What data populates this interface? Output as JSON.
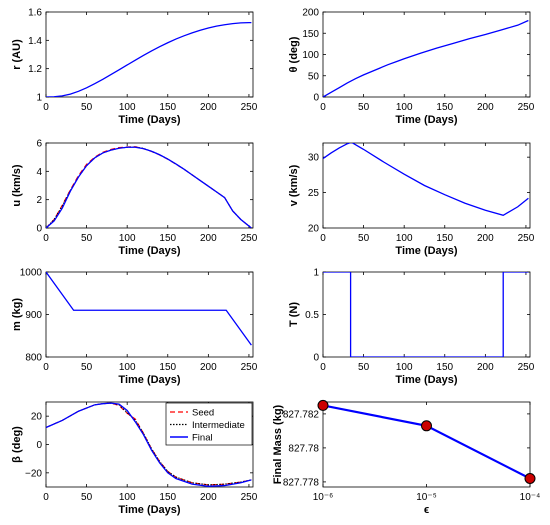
{
  "colors": {
    "final": "#0000ff",
    "seed": "#ff0000",
    "intermediate": "#000000",
    "marker_fill": "#cc0000"
  },
  "legend": {
    "seed": "Seed",
    "intermediate": "Intermediate",
    "final": "Final"
  },
  "chart_data": [
    {
      "type": "line",
      "id": "r",
      "xlabel": "Time (Days)",
      "ylabel": "r (AU)",
      "xlim": [
        0,
        255
      ],
      "ylim": [
        1,
        1.6
      ],
      "xticks": [
        0,
        50,
        100,
        150,
        200,
        250
      ],
      "xtick_labels": [
        "0",
        "50",
        "100",
        "150",
        "200",
        "250"
      ],
      "yticks": [
        1,
        1.2,
        1.4,
        1.6
      ],
      "ytick_labels": [
        "1",
        "1.2",
        "1.4",
        "1.6"
      ],
      "series": [
        {
          "style": "final",
          "x": [
            0,
            10,
            20,
            30,
            40,
            50,
            60,
            70,
            80,
            90,
            100,
            110,
            120,
            130,
            140,
            150,
            160,
            170,
            180,
            190,
            200,
            210,
            220,
            230,
            240,
            250,
            253
          ],
          "y": [
            1,
            1.002,
            1.008,
            1.02,
            1.04,
            1.065,
            1.094,
            1.125,
            1.158,
            1.192,
            1.226,
            1.26,
            1.293,
            1.325,
            1.355,
            1.383,
            1.409,
            1.432,
            1.453,
            1.471,
            1.487,
            1.5,
            1.51,
            1.518,
            1.523,
            1.525,
            1.525
          ]
        }
      ]
    },
    {
      "type": "line",
      "id": "theta",
      "xlabel": "Time (Days)",
      "ylabel": "θ (deg)",
      "xlim": [
        0,
        255
      ],
      "ylim": [
        0,
        200
      ],
      "xticks": [
        0,
        50,
        100,
        150,
        200,
        250
      ],
      "xtick_labels": [
        "0",
        "50",
        "100",
        "150",
        "200",
        "250"
      ],
      "yticks": [
        0,
        50,
        100,
        150,
        200
      ],
      "ytick_labels": [
        "0",
        "50",
        "100",
        "150",
        "200"
      ],
      "series": [
        {
          "style": "final",
          "x": [
            0,
            10,
            20,
            30,
            40,
            50,
            60,
            70,
            80,
            90,
            100,
            120,
            140,
            160,
            180,
            200,
            220,
            240,
            253
          ],
          "y": [
            0,
            11,
            22,
            33,
            43,
            52,
            60,
            68,
            76,
            83,
            90,
            103,
            115,
            126,
            137,
            147,
            158,
            169,
            180
          ]
        }
      ]
    },
    {
      "type": "line",
      "id": "u",
      "xlabel": "Time (Days)",
      "ylabel": "u (km/s)",
      "xlim": [
        0,
        255
      ],
      "ylim": [
        0,
        6
      ],
      "xticks": [
        0,
        50,
        100,
        150,
        200,
        250
      ],
      "xtick_labels": [
        "0",
        "50",
        "100",
        "150",
        "200",
        "250"
      ],
      "yticks": [
        0,
        2,
        4,
        6
      ],
      "ytick_labels": [
        "0",
        "2",
        "4",
        "6"
      ],
      "series": [
        {
          "style": "seed",
          "x": [
            0,
            10,
            20,
            30,
            40,
            50,
            60,
            70,
            80,
            90,
            100,
            110,
            120,
            130,
            140,
            150,
            160,
            170,
            180,
            190,
            200,
            210,
            220,
            230,
            240,
            253
          ],
          "y": [
            0,
            0.6,
            1.6,
            2.7,
            3.7,
            4.5,
            5.0,
            5.35,
            5.55,
            5.68,
            5.72,
            5.74,
            5.6,
            5.4,
            5.15,
            4.85,
            4.5,
            4.15,
            3.75,
            3.35,
            2.95,
            2.55,
            2.15,
            1.2,
            0.6,
            0
          ]
        },
        {
          "style": "intermediate",
          "x": [
            0,
            10,
            20,
            30,
            40,
            50,
            60,
            70,
            80,
            90,
            100,
            110,
            120,
            130,
            140,
            150,
            160,
            170,
            180,
            190,
            200,
            210,
            220,
            230,
            240,
            253
          ],
          "y": [
            0,
            0.6,
            1.55,
            2.65,
            3.6,
            4.4,
            4.95,
            5.3,
            5.5,
            5.63,
            5.7,
            5.72,
            5.62,
            5.42,
            5.17,
            4.87,
            4.52,
            4.15,
            3.75,
            3.35,
            2.95,
            2.55,
            2.15,
            1.2,
            0.6,
            0
          ]
        },
        {
          "style": "final",
          "x": [
            0,
            10,
            20,
            30,
            40,
            50,
            60,
            70,
            80,
            90,
            100,
            110,
            120,
            130,
            140,
            150,
            160,
            170,
            180,
            190,
            200,
            210,
            220,
            230,
            240,
            253
          ],
          "y": [
            0,
            0.5,
            1.4,
            2.6,
            3.6,
            4.4,
            4.95,
            5.3,
            5.5,
            5.63,
            5.7,
            5.7,
            5.6,
            5.42,
            5.17,
            4.87,
            4.52,
            4.15,
            3.75,
            3.35,
            2.95,
            2.55,
            2.15,
            1.2,
            0.6,
            0
          ]
        }
      ]
    },
    {
      "type": "line",
      "id": "v",
      "xlabel": "Time (Days)",
      "ylabel": "v (km/s)",
      "xlim": [
        0,
        255
      ],
      "ylim": [
        20,
        32
      ],
      "xticks": [
        0,
        50,
        100,
        150,
        200,
        250
      ],
      "xtick_labels": [
        "0",
        "50",
        "100",
        "150",
        "200",
        "250"
      ],
      "yticks": [
        20,
        25,
        30
      ],
      "ytick_labels": [
        "20",
        "25",
        "30"
      ],
      "series": [
        {
          "style": "final",
          "x": [
            0,
            10,
            20,
            30,
            35,
            50,
            75,
            100,
            125,
            150,
            175,
            200,
            222,
            240,
            253
          ],
          "y": [
            29.8,
            30.6,
            31.3,
            31.9,
            32.1,
            31.1,
            29.3,
            27.6,
            26.0,
            24.7,
            23.5,
            22.5,
            21.8,
            23.0,
            24.2
          ]
        }
      ]
    },
    {
      "type": "line",
      "id": "m",
      "xlabel": "Time (Days)",
      "ylabel": "m (kg)",
      "xlim": [
        0,
        255
      ],
      "ylim": [
        800,
        1000
      ],
      "xticks": [
        0,
        50,
        100,
        150,
        200,
        250
      ],
      "xtick_labels": [
        "0",
        "50",
        "100",
        "150",
        "200",
        "250"
      ],
      "yticks": [
        800,
        900,
        1000
      ],
      "ytick_labels": [
        "800",
        "900",
        "1000"
      ],
      "series": [
        {
          "style": "final",
          "x": [
            0,
            34,
            222,
            253
          ],
          "y": [
            1000,
            910,
            910,
            828
          ]
        }
      ]
    },
    {
      "type": "line",
      "id": "T",
      "xlabel": "Time (Days)",
      "ylabel": "T (N)",
      "xlim": [
        0,
        255
      ],
      "ylim": [
        0,
        1
      ],
      "xticks": [
        0,
        50,
        100,
        150,
        200,
        250
      ],
      "xtick_labels": [
        "0",
        "50",
        "100",
        "150",
        "200",
        "250"
      ],
      "yticks": [
        0,
        0.5,
        1
      ],
      "ytick_labels": [
        "0",
        "0.5",
        "1"
      ],
      "series": [
        {
          "style": "final",
          "x": [
            0,
            34,
            34,
            222,
            222,
            253
          ],
          "y": [
            1,
            1,
            0,
            0,
            1,
            1
          ]
        }
      ]
    },
    {
      "type": "line",
      "id": "beta",
      "xlabel": "Time (Days)",
      "ylabel": "β (deg)",
      "xlim": [
        0,
        255
      ],
      "ylim": [
        -30,
        30
      ],
      "xticks": [
        0,
        50,
        100,
        150,
        200,
        250
      ],
      "xtick_labels": [
        "0",
        "50",
        "100",
        "150",
        "200",
        "250"
      ],
      "yticks": [
        -20,
        0,
        20
      ],
      "ytick_labels": [
        "−20",
        "0",
        "20"
      ],
      "legend": "top-right",
      "series": [
        {
          "style": "seed",
          "x": [
            0,
            20,
            40,
            60,
            70,
            80,
            90,
            100,
            110,
            120,
            130,
            140,
            150,
            160,
            180,
            200,
            220,
            240,
            253
          ],
          "y": [
            12,
            17,
            23.5,
            28,
            28.8,
            29.2,
            27.5,
            22,
            18,
            8,
            -3,
            -12,
            -19,
            -23,
            -27,
            -28.5,
            -28,
            -26.5,
            -25
          ]
        },
        {
          "style": "intermediate",
          "x": [
            0,
            20,
            40,
            60,
            70,
            80,
            90,
            100,
            110,
            120,
            130,
            140,
            150,
            160,
            180,
            200,
            220,
            240,
            253
          ],
          "y": [
            12,
            17,
            23.5,
            28,
            28.8,
            29.2,
            28,
            22.5,
            17,
            8,
            -3,
            -12,
            -19,
            -23,
            -27,
            -28.5,
            -28,
            -26.5,
            -25
          ]
        },
        {
          "style": "final",
          "x": [
            0,
            20,
            40,
            60,
            70,
            80,
            90,
            100,
            110,
            120,
            130,
            140,
            150,
            160,
            180,
            200,
            220,
            240,
            253
          ],
          "y": [
            12,
            17,
            23.5,
            28,
            28.8,
            29.2,
            28.5,
            24,
            16,
            7,
            -4,
            -13,
            -20,
            -24,
            -28,
            -29.5,
            -29,
            -27,
            -25
          ]
        }
      ]
    },
    {
      "type": "line",
      "id": "final_mass",
      "xlabel": "ϵ",
      "ylabel": "Final Mass (kg)",
      "xscale": "log",
      "xlim": [
        1e-06,
        0.0001
      ],
      "ylim": [
        827.7777,
        827.7827
      ],
      "xticks": [
        1e-06,
        1e-05,
        0.0001
      ],
      "xtick_labels": [
        "10⁻⁶",
        "10⁻⁵",
        "10⁻⁴"
      ],
      "yticks": [
        827.778,
        827.78,
        827.782
      ],
      "ytick_labels": [
        "827.778",
        "827.78",
        "827.782"
      ],
      "series": [
        {
          "style": "final",
          "markers": true,
          "x": [
            1e-06,
            1e-05,
            0.0001
          ],
          "y": [
            827.7825,
            827.7813,
            827.7782
          ]
        }
      ]
    }
  ]
}
